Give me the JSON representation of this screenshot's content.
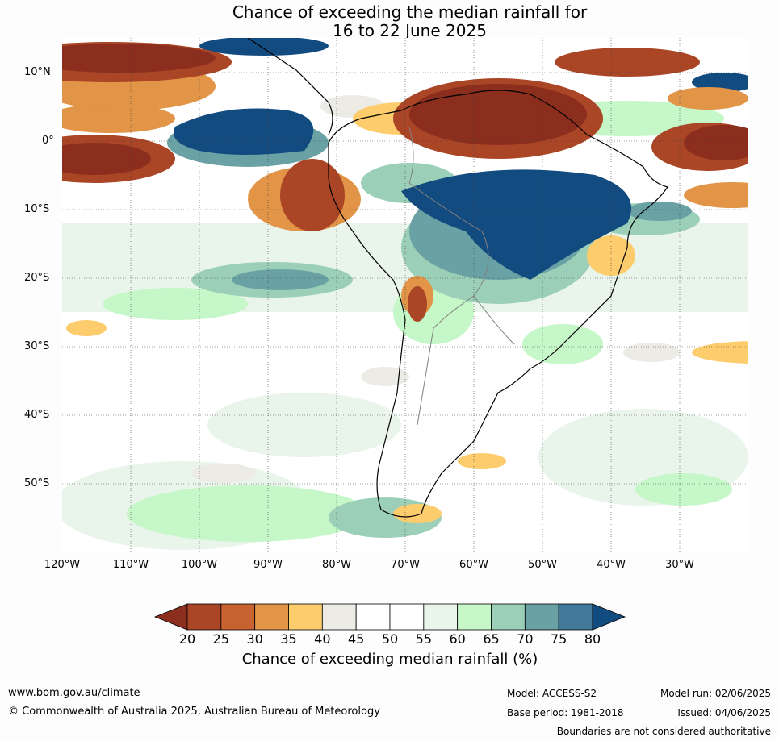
{
  "title": {
    "line1": "Chance of exceeding the median rainfall for",
    "line2": "16 to 22 June 2025"
  },
  "map": {
    "lat_labels": [
      "10°N",
      "0°",
      "10°S",
      "20°S",
      "30°S",
      "40°S",
      "50°S"
    ],
    "lat_values": [
      10,
      0,
      -10,
      -20,
      -30,
      -40,
      -50
    ],
    "lon_labels": [
      "120°W",
      "110°W",
      "100°W",
      "90°W",
      "80°W",
      "70°W",
      "60°W",
      "50°W",
      "40°W",
      "30°W"
    ],
    "lon_values": [
      -120,
      -110,
      -100,
      -90,
      -80,
      -70,
      -60,
      -50,
      -40,
      -30
    ],
    "lat_range": [
      -60,
      15
    ],
    "lon_range": [
      -120,
      -20
    ],
    "gridlines": true
  },
  "colorbar": {
    "ticks": [
      "20",
      "25",
      "30",
      "35",
      "40",
      "45",
      "50",
      "55",
      "60",
      "65",
      "70",
      "75",
      "80"
    ],
    "colors": [
      "#8b2e1e",
      "#aa4526",
      "#c96231",
      "#e29447",
      "#fdcd6d",
      "#ecebe6",
      "#ffffff",
      "#ffffff",
      "#e9f5ea",
      "#c6f7c8",
      "#9bcfb8",
      "#6aa1a4",
      "#43799a",
      "#124b80"
    ],
    "label": "Chance of exceeding median rainfall (%)"
  },
  "footer": {
    "url": "www.bom.gov.au/climate",
    "copyright": "© Commonwealth of Australia 2025, Australian Bureau of Meteorology",
    "model": "Model: ACCESS-S2",
    "model_run": "Model run: 02/06/2025",
    "base_period": "Base period: 1981-2018",
    "issued": "Issued: 04/06/2025",
    "disclaimer": "Boundaries are not considered authoritative"
  }
}
